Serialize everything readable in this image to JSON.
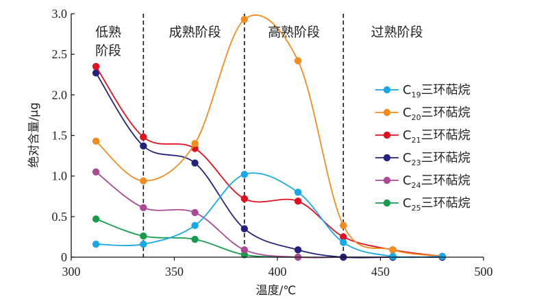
{
  "chart_data": {
    "type": "line",
    "xlabel": "温度/℃",
    "ylabel": "绝对含量/μg",
    "xlim": [
      300,
      500
    ],
    "ylim": [
      0,
      3.0
    ],
    "xticks": [
      "300",
      "350",
      "400",
      "450",
      "500"
    ],
    "yticks": [
      "0",
      "0.5",
      "1.0",
      "1.5",
      "2.0",
      "2.5",
      "3.0"
    ],
    "x": [
      312,
      335,
      360,
      384,
      410,
      432,
      456,
      480
    ],
    "stage_boundaries": [
      335,
      384,
      432
    ],
    "stages": [
      {
        "line1": "低熟",
        "line2": "阶段",
        "center": 318
      },
      {
        "line1": "成熟阶段",
        "line2": "",
        "center": 360
      },
      {
        "line1": "高熟阶段",
        "line2": "",
        "center": 408
      },
      {
        "line1": "过熟阶段",
        "line2": "",
        "center": 458
      }
    ],
    "legend_position": "right",
    "series": [
      {
        "prefix": "C",
        "sub": "19",
        "suffix": "三环萜烷",
        "color": "#1aa7e6",
        "values": [
          0.16,
          0.16,
          0.39,
          1.02,
          0.8,
          0.18,
          0.01,
          0.01
        ]
      },
      {
        "prefix": "C",
        "sub": "20",
        "suffix": "三环萜烷",
        "color": "#f28c1e",
        "values": [
          1.43,
          0.94,
          1.4,
          2.93,
          2.42,
          0.39,
          0.09,
          0.01
        ]
      },
      {
        "prefix": "C",
        "sub": "21",
        "suffix": "三环萜烷",
        "color": "#e3101d",
        "values": [
          2.35,
          1.48,
          1.34,
          0.72,
          0.69,
          0.25,
          0.09,
          0.01
        ]
      },
      {
        "prefix": "C",
        "sub": "23",
        "suffix": "三环萜烷",
        "color": "#23237f",
        "values": [
          2.27,
          1.37,
          1.16,
          0.35,
          0.09,
          0.0,
          0.0,
          0.0
        ]
      },
      {
        "prefix": "C",
        "sub": "24",
        "suffix": "三环萜烷",
        "color": "#a94a94",
        "values": [
          1.05,
          0.61,
          0.55,
          0.09,
          0.0,
          0.0,
          0.0,
          0.0
        ]
      },
      {
        "prefix": "C",
        "sub": "25",
        "suffix": "三环萜烷",
        "color": "#179c4c",
        "values": [
          0.47,
          0.26,
          0.22,
          0.03,
          0.0,
          0.0,
          0.0,
          0.0
        ]
      }
    ]
  }
}
